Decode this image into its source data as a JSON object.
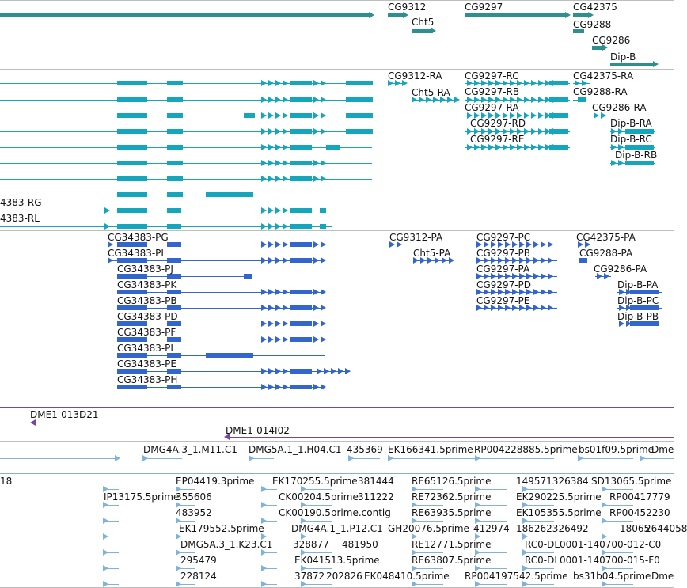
{
  "colors": {
    "gene": "#2f8e90",
    "transcript": "#13a6bc",
    "predicted": "#3366cc",
    "clone": "#7744aa",
    "est": "#7fb2dd",
    "separator": "#bdbdbd"
  },
  "gene_track": {
    "labels": [
      "CG9312",
      "Cht5",
      "CG9297",
      "CG42375",
      "CG9288",
      "CG9286",
      "Dip-B"
    ]
  },
  "transcript_track": {
    "labels": [
      "CG9312-RA",
      "Cht5-RA",
      "CG9297-RC",
      "CG9297-RB",
      "CG9297-RA",
      "CG9297-RD",
      "CG9297-RE",
      "CG42375-RA",
      "CG9288-RA",
      "CG9286-RA",
      "Dip-B-RA",
      "Dip-B-RC",
      "Dip-B-RB",
      "4383-RG",
      "4383-RL"
    ]
  },
  "prediction_track": {
    "labels": [
      "CG34383-PG",
      "CG34383-PL",
      "CG34383-PJ",
      "CG34383-PK",
      "CG34383-PB",
      "CG34383-PD",
      "CG34383-PF",
      "CG34383-PI",
      "CG34383-PE",
      "CG34383-PH",
      "CG9312-PA",
      "Cht5-PA",
      "CG9297-PC",
      "CG9297-PB",
      "CG9297-PA",
      "CG9297-PD",
      "CG9297-PE",
      "CG42375-PA",
      "CG9288-PA",
      "CG9286-PA",
      "Dip-B-PA",
      "Dip-B-PC",
      "Dip-B-PB"
    ]
  },
  "clone_track": {
    "labels": [
      "DME1-013D21",
      "DME1-014I02"
    ]
  },
  "est_track": {
    "row1": [
      "DMG4A.3_1.M11.C1",
      "DMG5A.1_1.H04.C1",
      "435369",
      "EK166341.5prime",
      "RP004228885.5prime",
      "bs01f09.5prime",
      "Dme"
    ],
    "labels": [
      "18",
      "EP04419.3prime",
      "EK170255.5prime",
      "381444",
      "RE65126.5prime",
      "149571326384",
      "SD13065.5prime",
      "IP13175.5prime",
      "355606",
      "CK00204.5prime",
      "311222",
      "RE72362.5prime",
      "EK290225.5prime",
      "RP00417779",
      "483952",
      "CK00190.5prime.contig",
      "RE63935.5prime",
      "EK105355.5prime",
      "RP00452230",
      "EK179552.5prime",
      "DMG4A.1_1.P12.C1",
      "GH20076.5prime",
      "412974",
      "186262326492",
      "18065",
      "2644058",
      "DMG5A.3_1.K23.C1",
      "328877",
      "481950",
      "RE12771.5prime",
      "RC0-DL0001-140700-012-C0",
      "295479",
      "EK041513.5prime",
      "RE63807.5prime",
      "RC0-DL0001-140700-015-F0",
      "228124",
      "37872",
      "202826",
      "EK048410.5prime",
      "RP004197542.5prime",
      "bs31b04.5prime",
      "Dme"
    ]
  }
}
